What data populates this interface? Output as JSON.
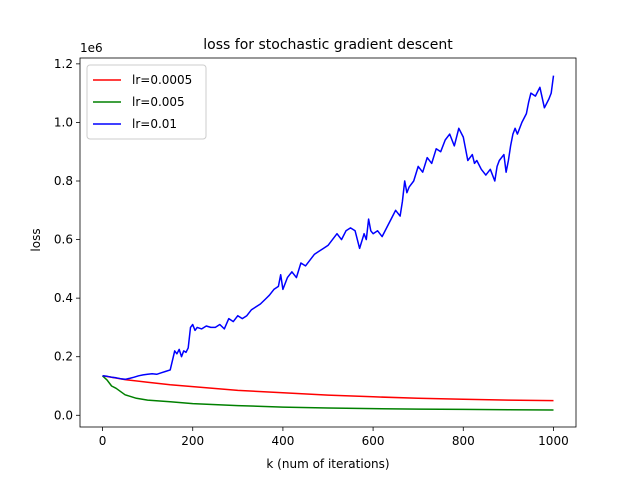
{
  "chart_data": {
    "type": "line",
    "title": "loss for stochastic gradient descent",
    "xlabel": "k (num of iterations)",
    "ylabel": "loss",
    "y_offset_label": "1e6",
    "xlim": [
      -50,
      1050
    ],
    "ylim": [
      -0.04,
      1.22
    ],
    "x_ticks": [
      0,
      200,
      400,
      600,
      800,
      1000
    ],
    "x_tick_labels": [
      "0",
      "200",
      "400",
      "600",
      "800",
      "1000"
    ],
    "y_ticks": [
      0.0,
      0.2,
      0.4,
      0.6,
      0.8,
      1.0,
      1.2
    ],
    "y_tick_labels": [
      "0.0",
      "0.2",
      "0.4",
      "0.6",
      "0.8",
      "1.0",
      "1.2"
    ],
    "grid": false,
    "legend_position": "top-left",
    "series": [
      {
        "name": "lr=0.0005",
        "color": "#ff0000",
        "x": [
          0,
          20,
          50,
          100,
          150,
          200,
          300,
          400,
          500,
          600,
          700,
          800,
          900,
          1000
        ],
        "y": [
          0.135,
          0.13,
          0.122,
          0.113,
          0.104,
          0.098,
          0.085,
          0.077,
          0.069,
          0.063,
          0.058,
          0.055,
          0.052,
          0.05
        ]
      },
      {
        "name": "lr=0.005",
        "color": "#008000",
        "x": [
          0,
          10,
          20,
          30,
          50,
          75,
          100,
          150,
          200,
          300,
          400,
          500,
          600,
          700,
          800,
          900,
          1000
        ],
        "y": [
          0.135,
          0.12,
          0.1,
          0.092,
          0.07,
          0.058,
          0.052,
          0.046,
          0.04,
          0.033,
          0.028,
          0.025,
          0.023,
          0.021,
          0.02,
          0.019,
          0.018
        ]
      },
      {
        "name": "lr=0.01",
        "color": "#0000ff",
        "x": [
          0,
          10,
          20,
          30,
          40,
          50,
          60,
          70,
          80,
          90,
          100,
          110,
          120,
          130,
          140,
          150,
          160,
          165,
          170,
          175,
          180,
          185,
          190,
          195,
          200,
          205,
          210,
          220,
          230,
          240,
          250,
          260,
          270,
          280,
          290,
          300,
          310,
          320,
          330,
          340,
          350,
          360,
          370,
          380,
          390,
          395,
          400,
          410,
          420,
          430,
          440,
          450,
          460,
          470,
          480,
          490,
          500,
          510,
          520,
          530,
          540,
          550,
          560,
          570,
          580,
          585,
          590,
          595,
          600,
          610,
          620,
          630,
          640,
          650,
          660,
          665,
          670,
          675,
          680,
          690,
          700,
          710,
          720,
          730,
          740,
          750,
          760,
          770,
          780,
          790,
          800,
          810,
          820,
          825,
          830,
          840,
          850,
          860,
          870,
          875,
          880,
          890,
          895,
          900,
          905,
          910,
          915,
          920,
          930,
          940,
          945,
          950,
          960,
          970,
          980,
          990,
          995,
          1000
        ],
        "y": [
          0.135,
          0.133,
          0.13,
          0.128,
          0.125,
          0.123,
          0.126,
          0.13,
          0.135,
          0.138,
          0.14,
          0.142,
          0.14,
          0.145,
          0.15,
          0.155,
          0.22,
          0.21,
          0.225,
          0.2,
          0.22,
          0.215,
          0.23,
          0.3,
          0.31,
          0.29,
          0.3,
          0.295,
          0.305,
          0.3,
          0.3,
          0.31,
          0.295,
          0.33,
          0.32,
          0.34,
          0.33,
          0.34,
          0.36,
          0.37,
          0.38,
          0.395,
          0.41,
          0.43,
          0.44,
          0.48,
          0.43,
          0.47,
          0.49,
          0.47,
          0.52,
          0.51,
          0.53,
          0.55,
          0.56,
          0.57,
          0.58,
          0.6,
          0.62,
          0.6,
          0.63,
          0.64,
          0.63,
          0.57,
          0.62,
          0.6,
          0.67,
          0.63,
          0.62,
          0.63,
          0.61,
          0.64,
          0.67,
          0.7,
          0.68,
          0.73,
          0.8,
          0.76,
          0.78,
          0.8,
          0.85,
          0.83,
          0.88,
          0.86,
          0.91,
          0.9,
          0.94,
          0.96,
          0.92,
          0.98,
          0.95,
          0.87,
          0.89,
          0.86,
          0.87,
          0.84,
          0.82,
          0.84,
          0.8,
          0.85,
          0.87,
          0.89,
          0.83,
          0.87,
          0.92,
          0.96,
          0.98,
          0.96,
          1.0,
          1.03,
          1.07,
          1.1,
          1.09,
          1.12,
          1.05,
          1.08,
          1.1,
          1.16
        ]
      }
    ]
  }
}
